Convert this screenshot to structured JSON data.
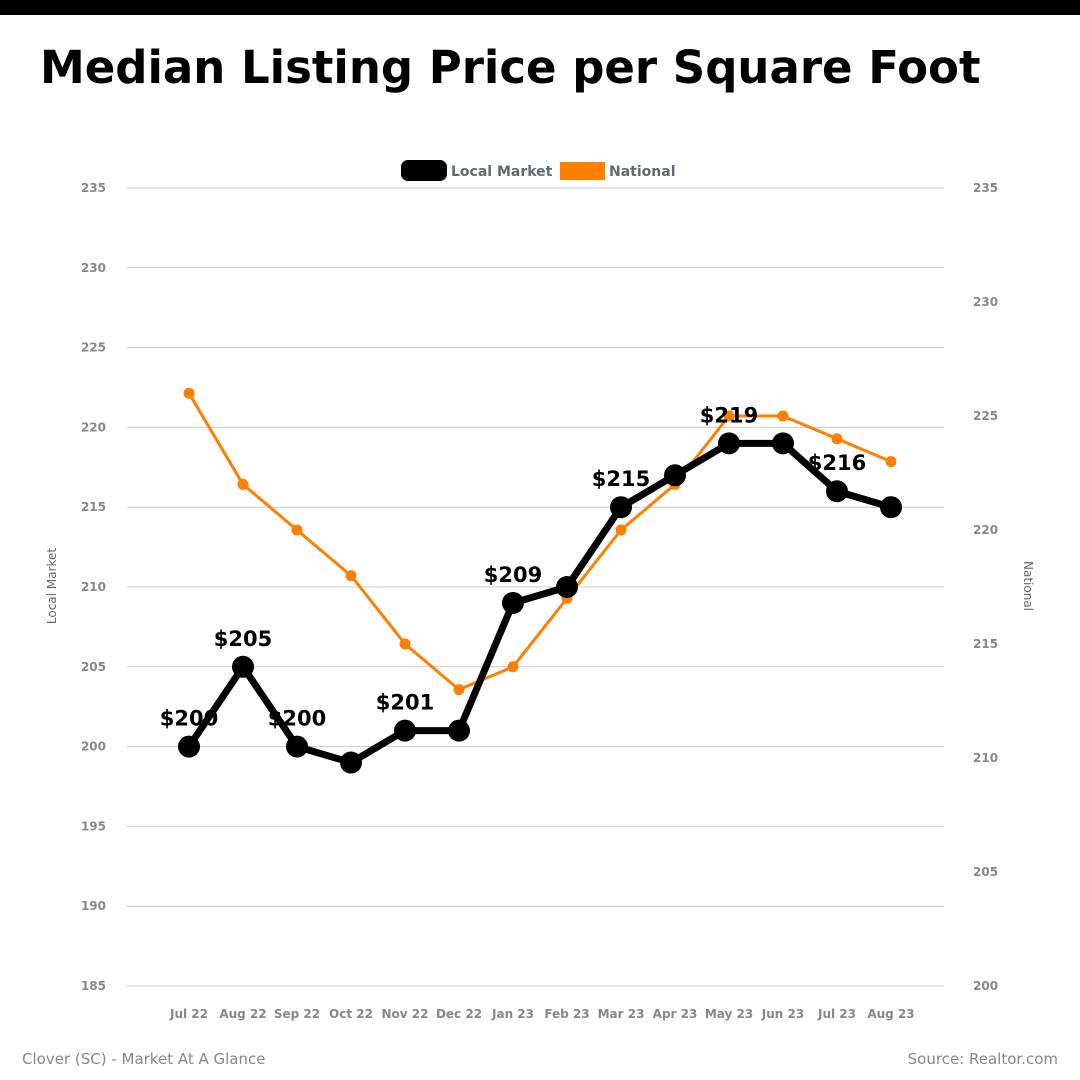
{
  "chart_data": {
    "type": "line",
    "title": "Median Listing Price per Square Foot",
    "categories": [
      "Jul 22",
      "Aug 22",
      "Sep 22",
      "Oct 22",
      "Nov 22",
      "Dec 22",
      "Jan 23",
      "Feb 23",
      "Mar 23",
      "Apr 23",
      "May 23",
      "Jun 23",
      "Jul 23",
      "Aug 23"
    ],
    "series": [
      {
        "name": "Local Market",
        "axis": "left",
        "color": "#000000",
        "values": [
          200,
          205,
          200,
          199,
          201,
          201,
          209,
          210,
          215,
          217,
          219,
          219,
          216,
          215
        ],
        "data_labels": [
          "$200",
          "$205",
          "$200",
          "",
          "$201",
          "",
          "$209",
          "",
          "$215",
          "",
          "$219",
          "",
          "$216",
          ""
        ]
      },
      {
        "name": "National",
        "axis": "right",
        "color": "#ff8000",
        "values": [
          226,
          222,
          220,
          218,
          215,
          213,
          214,
          217,
          220,
          222,
          225,
          225,
          224,
          223
        ]
      }
    ],
    "left_axis": {
      "label": "Local Market",
      "min": 185,
      "max": 235,
      "ticks": [
        185,
        190,
        195,
        200,
        205,
        210,
        215,
        220,
        225,
        230,
        235
      ]
    },
    "right_axis": {
      "label": "National",
      "min": 200,
      "max": 235,
      "ticks": [
        200,
        205,
        210,
        215,
        220,
        225,
        230,
        235
      ]
    },
    "grid": true,
    "legend_position": "top-center"
  },
  "footer": {
    "left": "Clover (SC) - Market At A Glance",
    "right": "Source: Realtor.com"
  }
}
